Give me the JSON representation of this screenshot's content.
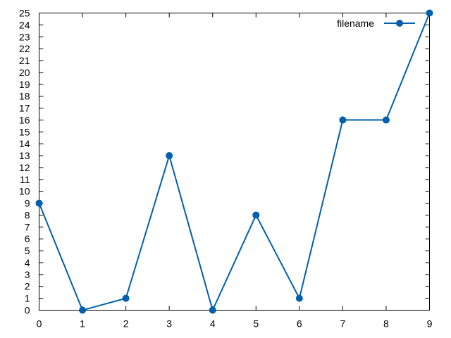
{
  "chart_data": {
    "type": "line",
    "x": [
      0,
      1,
      2,
      3,
      4,
      5,
      6,
      7,
      8,
      9
    ],
    "series": [
      {
        "name": "filename",
        "values": [
          9,
          0,
          1,
          13,
          0,
          8,
          1,
          16,
          16,
          25
        ]
      }
    ],
    "title": "",
    "xlabel": "",
    "ylabel": "",
    "xlim": [
      0,
      9
    ],
    "ylim": [
      0,
      25
    ],
    "xticks": [
      "0",
      "1",
      "2",
      "3",
      "4",
      "5",
      "6",
      "7",
      "8",
      "9"
    ],
    "yticks": [
      "0",
      "1",
      "2",
      "3",
      "4",
      "5",
      "6",
      "7",
      "8",
      "9",
      "10",
      "11",
      "12",
      "13",
      "14",
      "15",
      "16",
      "17",
      "18",
      "19",
      "20",
      "21",
      "22",
      "23",
      "24",
      "25"
    ],
    "grid": false,
    "legend_position": "top-right",
    "colors": {
      "series": "#0060ad",
      "axes": "#000000"
    }
  }
}
